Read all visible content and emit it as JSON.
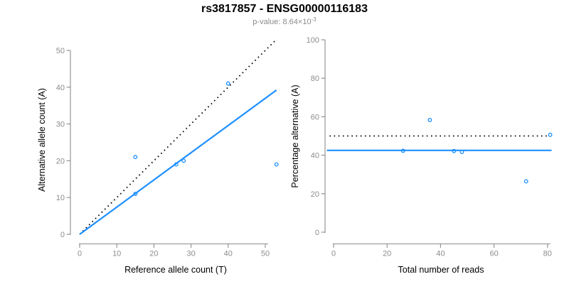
{
  "header": {
    "title": "rs3817857 - ENSG00000116183",
    "p_label": "p-value: 8.64×10",
    "p_exponent": "-3"
  },
  "colors": {
    "accent_blue": "#1E90FF",
    "identity_black": "#000000",
    "axis_gray": "#8C8C8C",
    "tick_label_gray": "#8C8C8C",
    "axis_title_black": "#000000",
    "subtitle_gray": "#8C8C8C"
  },
  "chart_data": [
    {
      "type": "scatter",
      "panel": "left",
      "xlabel": "Reference allele count (T)",
      "ylabel": "Alternative allele count (A)",
      "xlim": [
        0,
        53
      ],
      "ylim": [
        0,
        53
      ],
      "xticks": [
        0,
        10,
        20,
        30,
        40,
        50
      ],
      "yticks": [
        0,
        10,
        20,
        30,
        40,
        50
      ],
      "grid": false,
      "points": [
        {
          "x": 15,
          "y": 21
        },
        {
          "x": 15,
          "y": 11
        },
        {
          "x": 26,
          "y": 19
        },
        {
          "x": 28,
          "y": 20
        },
        {
          "x": 40,
          "y": 41
        },
        {
          "x": 53,
          "y": 19
        }
      ],
      "lines": [
        {
          "name": "identity-line",
          "style": "dotted",
          "color": "#000000",
          "x1": 0,
          "y1": 0,
          "x2": 53,
          "y2": 53
        },
        {
          "name": "fit-line",
          "style": "solid",
          "color": "#1E90FF",
          "x1": 0,
          "y1": 0,
          "x2": 53,
          "y2": 39.2
        }
      ]
    },
    {
      "type": "scatter",
      "panel": "right",
      "xlabel": "Total number of reads",
      "ylabel": "Percentage alternative (A)",
      "xlim": [
        0,
        83
      ],
      "ylim": [
        0,
        100
      ],
      "xticks": [
        0,
        20,
        40,
        60,
        80
      ],
      "yticks": [
        0,
        20,
        40,
        60,
        80,
        100
      ],
      "grid": false,
      "points": [
        {
          "x": 26,
          "y": 42.3
        },
        {
          "x": 36,
          "y": 58.3
        },
        {
          "x": 45,
          "y": 42.2
        },
        {
          "x": 48,
          "y": 41.7
        },
        {
          "x": 72,
          "y": 26.4
        },
        {
          "x": 81,
          "y": 50.6
        }
      ],
      "lines": [
        {
          "name": "expected-50-percent-line",
          "style": "dotted",
          "color": "#000000",
          "x1": -1.5,
          "y1": 50,
          "x2": 80.5,
          "y2": 50
        },
        {
          "name": "mean-percentage-line",
          "style": "solid",
          "color": "#1E90FF",
          "x1": -2.5,
          "y1": 42.5,
          "x2": 81.5,
          "y2": 42.5
        }
      ]
    }
  ]
}
